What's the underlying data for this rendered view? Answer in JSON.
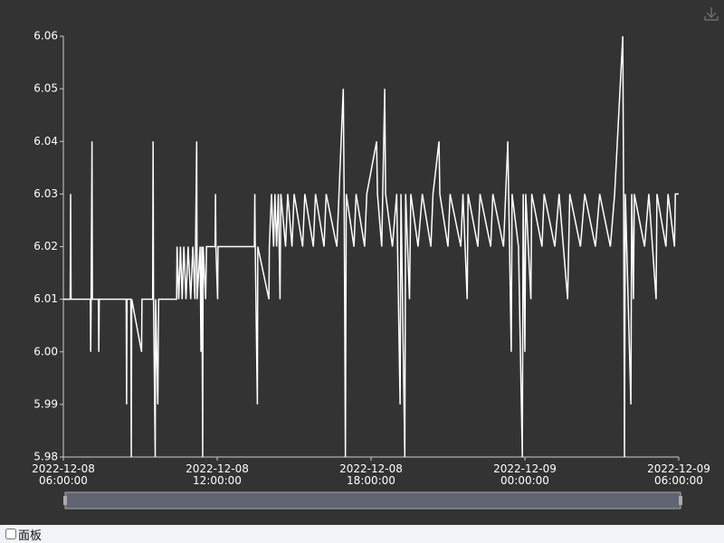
{
  "chart_data": {
    "type": "line",
    "color": "#ffffff",
    "ylim": [
      5.98,
      6.06
    ],
    "yticks": [
      5.98,
      5.99,
      {
        "value": 6,
        "label": "6.00"
      },
      6.01,
      6.02,
      6.03,
      6.04,
      6.05,
      6.06
    ],
    "xlim": [
      "2022-12-08 06:00:00",
      "2022-12-09 06:00:00"
    ],
    "xticks": [
      "2022-12-08 06:00:00",
      "2022-12-08 12:00:00",
      "2022-12-08 18:00:00",
      "2022-12-09 00:00:00",
      "2022-12-09 06:00:00"
    ],
    "x": [
      "2022-12-08 06:00:00",
      "2022-12-08 06:16:00",
      "2022-12-08 06:17:00",
      "2022-12-08 06:18:00",
      "2022-12-08 07:03:00",
      "2022-12-08 07:04:00",
      "2022-12-08 07:05:00",
      "2022-12-08 07:07:00",
      "2022-12-08 07:08:00",
      "2022-12-08 07:22:00",
      "2022-12-08 07:23:00",
      "2022-12-08 07:24:00",
      "2022-12-08 08:27:00",
      "2022-12-08 08:28:00",
      "2022-12-08 08:29:00",
      "2022-12-08 08:38:00",
      "2022-12-08 08:39:00",
      "2022-12-08 08:40:00",
      "2022-12-08 09:03:00",
      "2022-12-08 09:04:00",
      "2022-12-08 09:29:00",
      "2022-12-08 09:30:00",
      "2022-12-08 09:31:00",
      "2022-12-08 09:35:00",
      "2022-12-08 09:36:00",
      "2022-12-08 09:41:00",
      "2022-12-08 09:43:00",
      "2022-12-08 10:25:00",
      "2022-12-08 10:26:00",
      "2022-12-08 10:30:00",
      "2022-12-08 10:34:00",
      "2022-12-08 10:38:00",
      "2022-12-08 10:42:00",
      "2022-12-08 10:47:00",
      "2022-12-08 10:52:00",
      "2022-12-08 10:58:00",
      "2022-12-08 11:03:00",
      "2022-12-08 11:08:00",
      "2022-12-08 11:12:00",
      "2022-12-08 11:13:00",
      "2022-12-08 11:20:00",
      "2022-12-08 11:22:00",
      "2022-12-08 11:24:00",
      "2022-12-08 11:26:00",
      "2022-12-08 11:27:00",
      "2022-12-08 11:33:00",
      "2022-12-08 11:35:00",
      "2022-12-08 11:55:00",
      "2022-12-08 11:56:00",
      "2022-12-08 11:57:00",
      "2022-12-08 12:01:00",
      "2022-12-08 12:02:00",
      "2022-12-08 13:27:00",
      "2022-12-08 13:28:00",
      "2022-12-08 13:29:00",
      "2022-12-08 13:34:00",
      "2022-12-08 13:35:00",
      "2022-12-08 14:01:00",
      "2022-12-08 14:02:00",
      "2022-12-08 14:07:00",
      "2022-12-08 14:12:00",
      "2022-12-08 14:15:00",
      "2022-12-08 14:19:00",
      "2022-12-08 14:23:00",
      "2022-12-08 14:27:00",
      "2022-12-08 14:29:00",
      "2022-12-08 14:40:00",
      "2022-12-08 14:45:00",
      "2022-12-08 14:55:00",
      "2022-12-08 15:00:00",
      "2022-12-08 15:20:00",
      "2022-12-08 15:25:00",
      "2022-12-08 15:45:00",
      "2022-12-08 15:50:00",
      "2022-12-08 16:10:00",
      "2022-12-08 16:15:00",
      "2022-12-08 16:40:00",
      "2022-12-08 16:45:00",
      "2022-12-08 16:55:00",
      "2022-12-08 16:57:00",
      "2022-12-08 17:00:00",
      "2022-12-08 17:02:00",
      "2022-12-08 17:20:00",
      "2022-12-08 17:25:00",
      "2022-12-08 17:45:00",
      "2022-12-08 17:50:00",
      "2022-12-08 18:13:00",
      "2022-12-08 18:15:00",
      "2022-12-08 18:25:00",
      "2022-12-08 18:32:00",
      "2022-12-08 18:34:00",
      "2022-12-08 18:50:00",
      "2022-12-08 19:00:00",
      "2022-12-08 19:08:00",
      "2022-12-08 19:10:00",
      "2022-12-08 19:19:00",
      "2022-12-08 19:21:00",
      "2022-12-08 19:30:00",
      "2022-12-08 19:33:00",
      "2022-12-08 19:50:00",
      "2022-12-08 20:00:00",
      "2022-12-08 20:20:00",
      "2022-12-08 20:25:00",
      "2022-12-08 20:39:00",
      "2022-12-08 20:41:00",
      "2022-12-08 21:00:00",
      "2022-12-08 21:05:00",
      "2022-12-08 21:30:00",
      "2022-12-08 21:35:00",
      "2022-12-08 21:45:00",
      "2022-12-08 21:47:00",
      "2022-12-08 22:10:00",
      "2022-12-08 22:15:00",
      "2022-12-08 22:40:00",
      "2022-12-08 22:45:00",
      "2022-12-08 23:10:00",
      "2022-12-08 23:15:00",
      "2022-12-08 23:20:00",
      "2022-12-08 23:22:00",
      "2022-12-08 23:28:00",
      "2022-12-08 23:30:00",
      "2022-12-08 23:45:00",
      "2022-12-08 23:54:00",
      "2022-12-08 23:56:00",
      "2022-12-09 00:00:00",
      "2022-12-09 00:02:00",
      "2022-12-09 00:14:00",
      "2022-12-09 00:16:00",
      "2022-12-09 00:40:00",
      "2022-12-09 00:45:00",
      "2022-12-09 01:10:00",
      "2022-12-09 01:20:00",
      "2022-12-09 01:40:00",
      "2022-12-09 01:45:00",
      "2022-12-09 02:10:00",
      "2022-12-09 02:20:00",
      "2022-12-09 02:45:00",
      "2022-12-09 02:55:00",
      "2022-12-09 03:20:00",
      "2022-12-09 03:30:00",
      "2022-12-09 03:49:00",
      "2022-12-09 03:51:00",
      "2022-12-09 03:53:00",
      "2022-12-09 03:55:00",
      "2022-12-09 04:08:00",
      "2022-12-09 04:10:00",
      "2022-12-09 04:14:00",
      "2022-12-09 04:16:00",
      "2022-12-09 04:40:00",
      "2022-12-09 04:50:00",
      "2022-12-09 05:07:00",
      "2022-12-09 05:09:00",
      "2022-12-09 05:30:00",
      "2022-12-09 05:35:00",
      "2022-12-09 05:50:00",
      "2022-12-09 05:52:00",
      "2022-12-09 06:00:00"
    ],
    "values": [
      6.01,
      6.01,
      6.03,
      6.01,
      6.01,
      6.0,
      6.01,
      6.04,
      6.01,
      6.01,
      6.0,
      6.01,
      6.01,
      5.99,
      6.01,
      6.01,
      5.98,
      6.01,
      6.0,
      6.01,
      6.01,
      6.04,
      6.01,
      5.98,
      6.01,
      5.99,
      6.01,
      6.01,
      6.02,
      6.01,
      6.02,
      6.01,
      6.02,
      6.01,
      6.02,
      6.01,
      6.02,
      6.01,
      6.04,
      6.01,
      6.02,
      6.0,
      6.02,
      5.98,
      6.02,
      6.01,
      6.02,
      6.02,
      6.03,
      6.02,
      6.01,
      6.02,
      6.02,
      6.03,
      6.02,
      5.99,
      6.02,
      6.01,
      6.02,
      6.03,
      6.02,
      6.03,
      6.02,
      6.03,
      6.01,
      6.03,
      6.02,
      6.03,
      6.02,
      6.03,
      6.02,
      6.03,
      6.02,
      6.03,
      6.02,
      6.03,
      6.02,
      6.03,
      6.05,
      6.03,
      5.98,
      6.03,
      6.02,
      6.03,
      6.02,
      6.03,
      6.04,
      6.03,
      6.02,
      6.05,
      6.03,
      6.02,
      6.03,
      5.99,
      6.03,
      5.98,
      6.03,
      6.01,
      6.03,
      6.02,
      6.03,
      6.02,
      6.03,
      6.04,
      6.03,
      6.02,
      6.03,
      6.02,
      6.03,
      6.01,
      6.03,
      6.02,
      6.03,
      6.02,
      6.03,
      6.02,
      6.03,
      6.04,
      6.03,
      6.0,
      6.03,
      6.02,
      5.98,
      6.03,
      6.0,
      6.03,
      6.01,
      6.03,
      6.02,
      6.03,
      6.02,
      6.03,
      6.01,
      6.03,
      6.02,
      6.03,
      6.02,
      6.03,
      6.02,
      6.03,
      6.06,
      6.03,
      5.98,
      6.03,
      5.99,
      6.03,
      6.01,
      6.03,
      6.02,
      6.03,
      6.01,
      6.03,
      6.02,
      6.03,
      6.02,
      6.03,
      6.03
    ]
  },
  "panel_label": "面板"
}
